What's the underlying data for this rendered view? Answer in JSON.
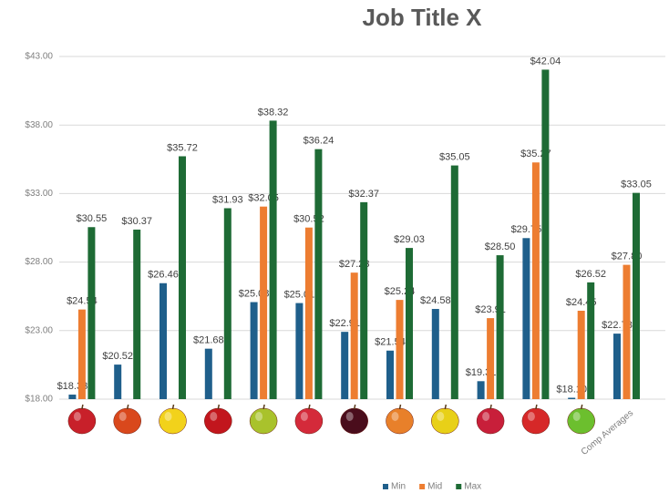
{
  "chart_data": {
    "type": "bar",
    "title": "Job Title X",
    "categories": [
      null,
      null,
      null,
      null,
      null,
      null,
      null,
      null,
      null,
      null,
      null,
      null,
      "Comp Averages"
    ],
    "series": [
      {
        "name": "Min",
        "color": "#1f5f8b",
        "values": [
          18.33,
          20.52,
          26.46,
          21.68,
          25.08,
          25.01,
          22.91,
          21.54,
          24.58,
          19.31,
          29.75,
          18.1,
          22.78
        ],
        "value_labels": [
          "$18.33",
          "$20.52",
          "$26.46",
          "$21.68",
          "$25.08",
          "$25.01",
          "$22.91",
          "$21.54",
          "$24.58",
          "$19.31",
          "$29.75",
          "$18.10",
          "$22.78"
        ]
      },
      {
        "name": "Mid",
        "color": "#ed7d31",
        "values": [
          24.54,
          null,
          null,
          null,
          32.05,
          30.52,
          27.23,
          25.24,
          null,
          23.91,
          35.27,
          24.45,
          27.8
        ],
        "value_labels": [
          "$24.54",
          null,
          null,
          null,
          "$32.05",
          "$30.52",
          "$27.23",
          "$25.24",
          null,
          "$23.91",
          "$35.27",
          "$24.45",
          "$27.80"
        ]
      },
      {
        "name": "Max",
        "color": "#1e6b35",
        "values": [
          30.55,
          30.37,
          35.72,
          31.93,
          38.32,
          36.24,
          32.37,
          29.03,
          35.05,
          28.5,
          42.04,
          26.52,
          33.05
        ],
        "value_labels": [
          "$30.55",
          "$30.37",
          "$35.72",
          "$31.93",
          "$38.32",
          "$36.24",
          "$32.37",
          "$29.03",
          "$35.05",
          "$28.50",
          "$42.04",
          "$26.52",
          "$33.05"
        ]
      }
    ],
    "ylim": [
      18,
      43
    ],
    "yticks": [
      {
        "value": 18,
        "label": "$18.00"
      },
      {
        "value": 23,
        "label": "$23.00"
      },
      {
        "value": 28,
        "label": "$28.00"
      },
      {
        "value": 33,
        "label": "$33.00"
      },
      {
        "value": 38,
        "label": "$38.00"
      },
      {
        "value": 43,
        "label": "$43.00"
      }
    ],
    "grid": true,
    "legend": "bottom"
  }
}
